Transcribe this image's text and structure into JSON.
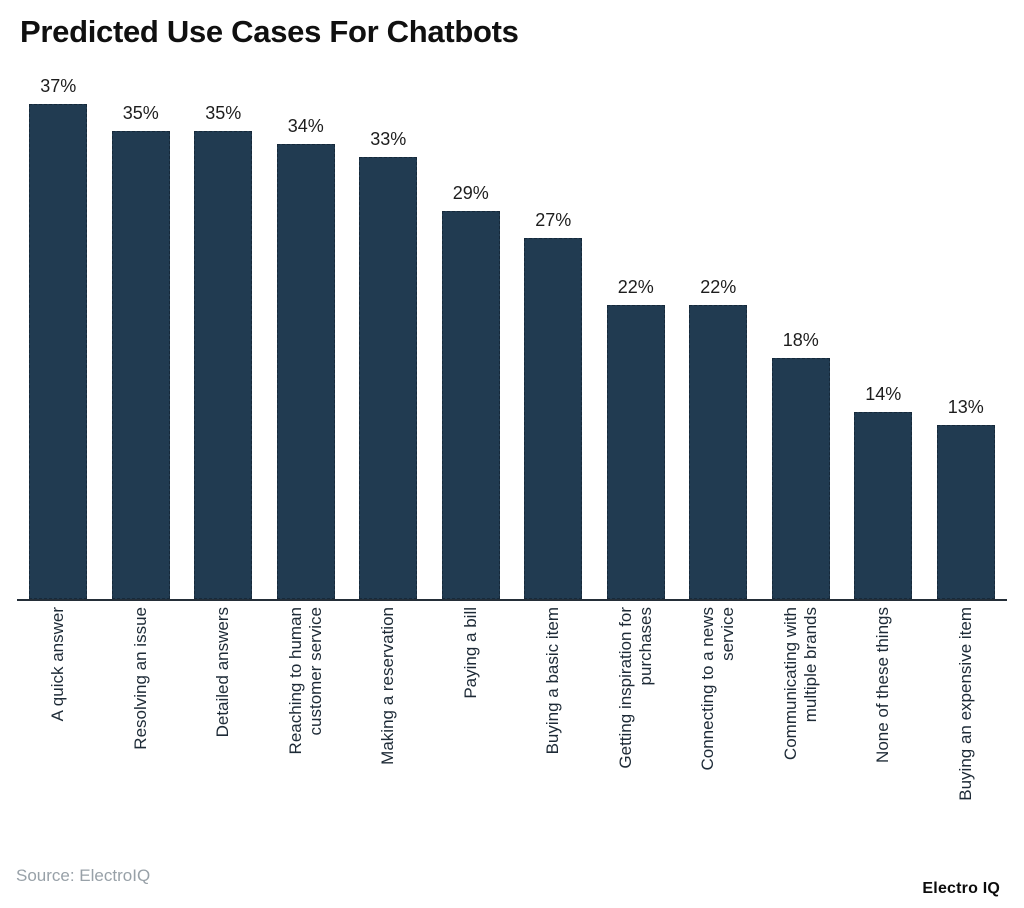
{
  "header": {
    "title": "Predicted Use Cases For Chatbots"
  },
  "footer": {
    "source": "Source: ElectroIQ",
    "brand": "Electro IQ"
  },
  "colors": {
    "bar": "#213B51",
    "bar_border": "#16293A",
    "axis": "#242E38",
    "title": "#101010",
    "value_label": "#1D1D1D",
    "x_label": "#1D2A36",
    "source": "#98A1A8",
    "brand": "#0C0C0C"
  },
  "chart_data": {
    "type": "bar",
    "title": "Predicted Use Cases For Chatbots",
    "categories": [
      "A quick answer",
      "Resolving an issue",
      "Detailed answers",
      "Reaching to human\ncustomer service",
      "Making a reservation",
      "Paying a bill",
      "Buying a basic item",
      "Getting inspiration for\npurchases",
      "Connecting to a news\nservice",
      "Communicating with\nmultiple brands",
      "None of these things",
      "Buying an expensive item"
    ],
    "values": [
      37,
      35,
      35,
      34,
      33,
      29,
      27,
      22,
      22,
      18,
      14,
      13
    ],
    "unit": "%",
    "value_labels_position": "above bars",
    "x_label_rotation": -90,
    "xlabel": "",
    "ylabel": "",
    "ylim": [
      0,
      40
    ],
    "grid": false,
    "legend": "none"
  }
}
